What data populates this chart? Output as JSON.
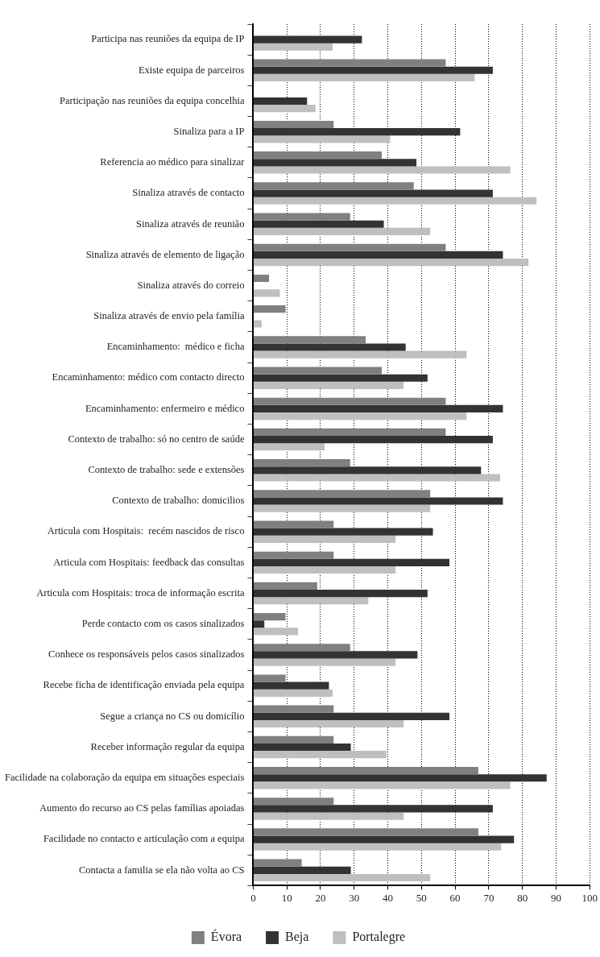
{
  "chart_data": {
    "type": "bar",
    "orientation": "horizontal",
    "categories": [
      "Participa nas reuniões da equipa de IP",
      "Existe equipa de parceiros",
      "Participação nas reuniões da equipa concelhia",
      "Sinaliza para a IP",
      "Referencia ao médico para sinalizar",
      "Sinaliza através de contacto",
      "Sinaliza através de reunião",
      "Sinaliza através de elemento de ligação",
      "Sinaliza através do correio",
      "Sinaliza através de envio pela família",
      "Encaminhamento:  médico e ficha",
      "Encaminhamento: médico com contacto directo",
      "Encaminhamento: enfermeiro e médico",
      "Contexto de trabalho: só no centro de saúde",
      "Contexto de trabalho: sede e extensões",
      "Contexto de trabalho: domicilios",
      "Articula com Hospitais:  recém nascidos de risco",
      "Articula com Hospitais: feedback das consultas",
      "Articula com Hospitais: troca de informação escrita",
      "Perde contacto com os casos sinalizados",
      "Conhece os responsáveis pelos casos sinalizados",
      "Recebe ficha de identificação enviada pela equipa",
      "Segue a criança no CS ou domicílio",
      "Receber informação regular da equipa",
      "Facilidade na colaboração da equipa em situações especiais",
      "Aumento do recurso ao CS pelas famílias apoiadas",
      "Facilidade no contacto e articulação com a equipa",
      "Contacta a familia se ela não volta ao CS"
    ],
    "series": [
      {
        "name": "Évora",
        "color": "#808080",
        "values": [
          0,
          57.2,
          0,
          23.9,
          38.2,
          47.7,
          28.8,
          57.2,
          4.7,
          9.6,
          33.4,
          38.2,
          57.2,
          57.2,
          28.8,
          52.6,
          23.9,
          23.9,
          19,
          9.6,
          28.8,
          9.6,
          23.9,
          23.9,
          66.9,
          23.9,
          66.9,
          14.4
        ]
      },
      {
        "name": "Beja",
        "color": "#333333",
        "values": [
          32.3,
          71.2,
          16,
          61.5,
          48.5,
          71.2,
          38.8,
          74.2,
          0,
          0,
          45.3,
          51.8,
          74.2,
          71.2,
          67.7,
          74.2,
          53.4,
          58.3,
          51.8,
          3.3,
          48.8,
          22.5,
          58.3,
          29,
          87.2,
          71.2,
          77.5,
          29
        ]
      },
      {
        "name": "Portalegre",
        "color": "#bfbfbf",
        "values": [
          23.6,
          65.8,
          18.5,
          40.7,
          76.4,
          84.2,
          52.6,
          81.8,
          7.9,
          2.5,
          63.4,
          44.7,
          63.4,
          21.2,
          73.4,
          52.6,
          42.3,
          42.3,
          34.2,
          13.3,
          42.3,
          23.6,
          44.7,
          39.6,
          76.4,
          44.7,
          73.7,
          52.6
        ]
      }
    ],
    "xlim": [
      0,
      100
    ],
    "xticks": [
      0,
      10,
      20,
      30,
      40,
      50,
      60,
      70,
      80,
      90,
      100
    ],
    "grid": "x",
    "legend": "bottom"
  }
}
